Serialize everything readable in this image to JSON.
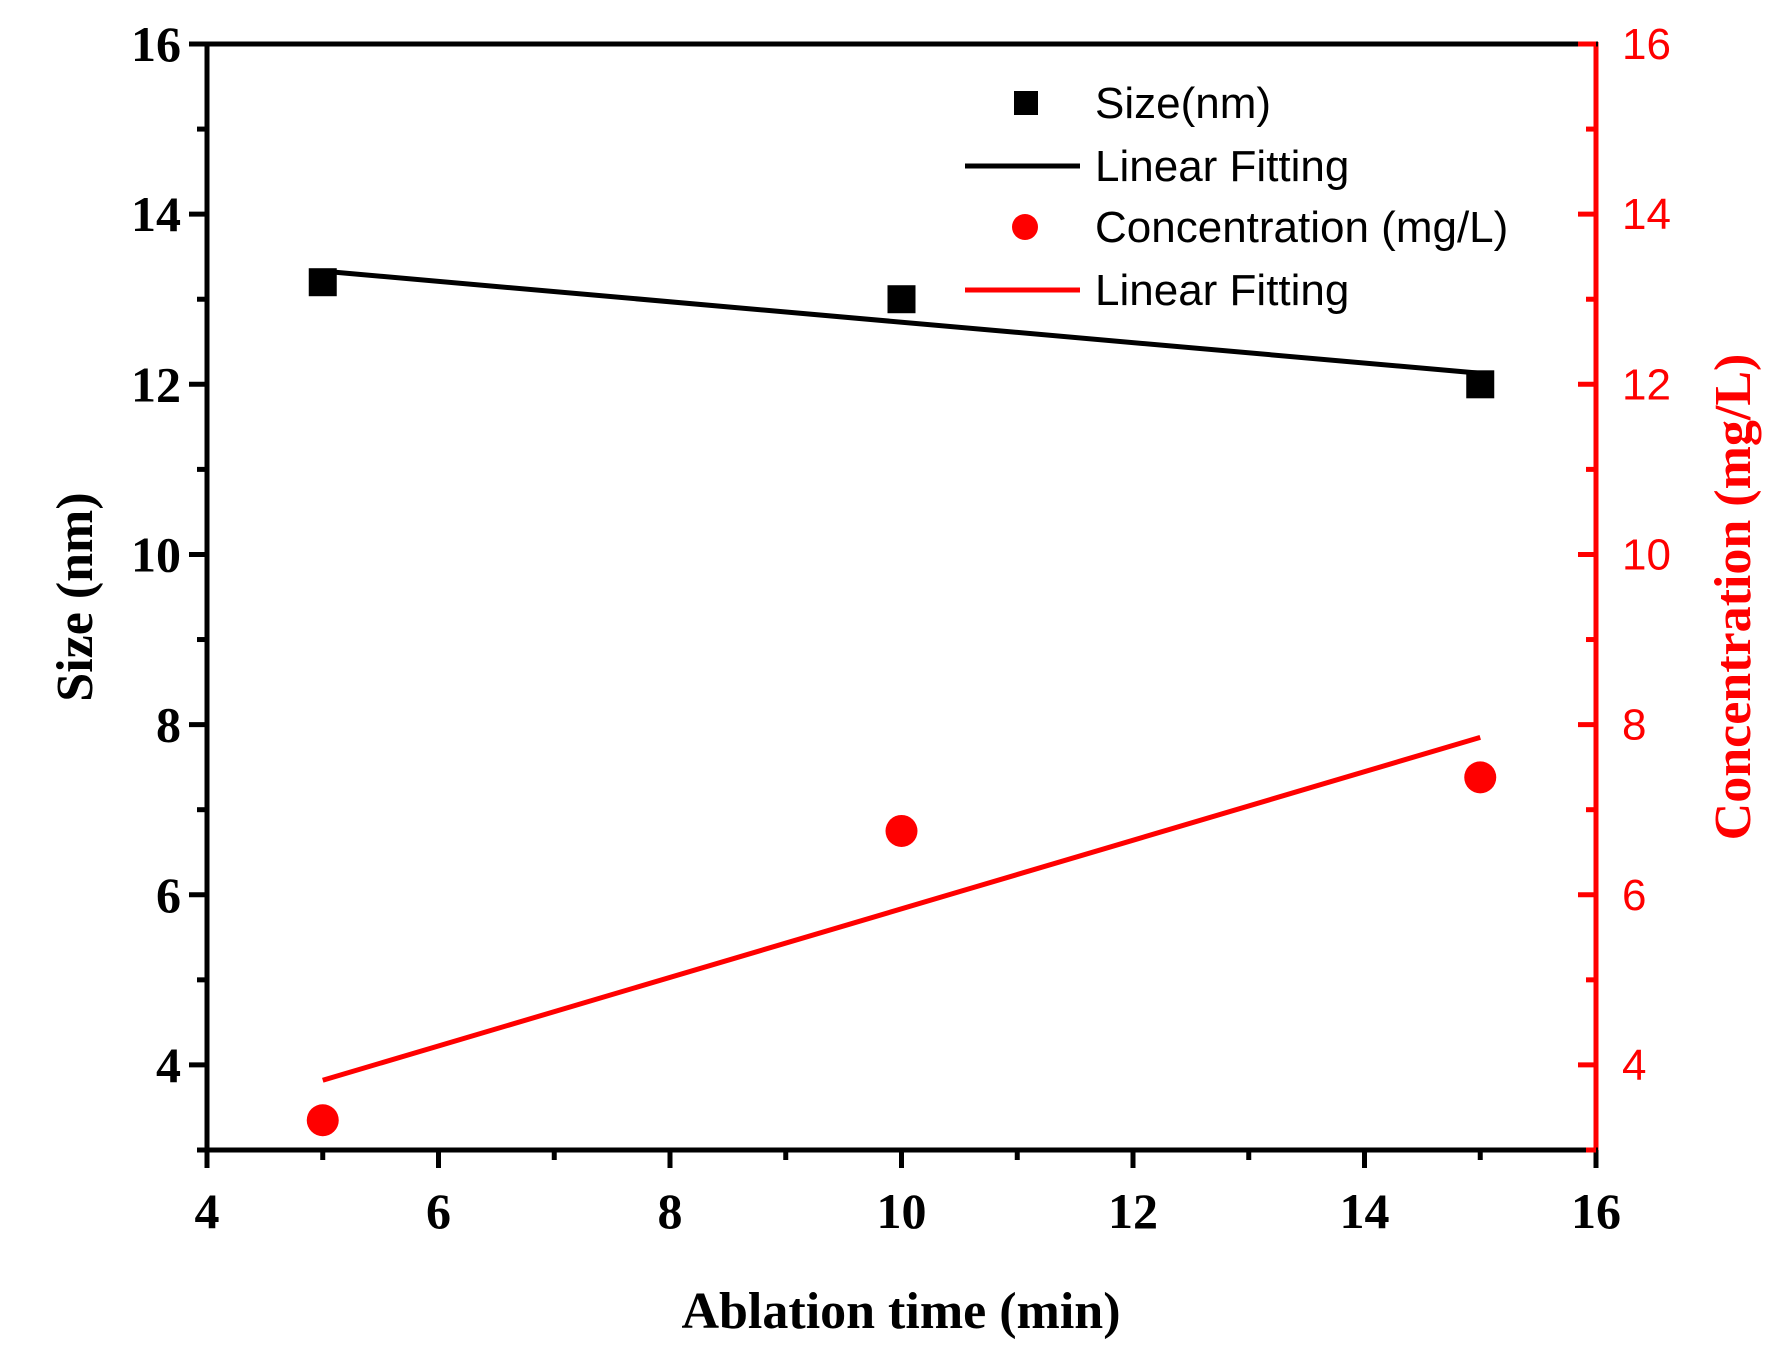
{
  "chart_data": {
    "type": "scatter",
    "x_axis": {
      "label": "Ablation time (min)",
      "range": [
        4,
        16
      ],
      "ticks": [
        "4",
        "6",
        "8",
        "10",
        "12",
        "14",
        "16"
      ]
    },
    "y_axis_left": {
      "label": "Size (nm)",
      "range": [
        3,
        16
      ],
      "ticks": [
        "4",
        "6",
        "8",
        "10",
        "12",
        "14",
        "16"
      ],
      "color": "#000000"
    },
    "y_axis_right": {
      "label": "Concentration (mg/L)",
      "range": [
        3,
        16
      ],
      "ticks": [
        "4",
        "6",
        "8",
        "10",
        "12",
        "14",
        "16"
      ],
      "color": "#ff0000"
    },
    "series": [
      {
        "name": "Size(nm)",
        "kind": "scatter",
        "marker": "square",
        "axis": "left",
        "color": "#000000",
        "x": [
          5,
          10,
          15
        ],
        "y": [
          13.2,
          13.0,
          12.0
        ]
      },
      {
        "name": "Linear Fitting",
        "kind": "line",
        "axis": "left",
        "color": "#000000",
        "x": [
          5,
          15
        ],
        "y": [
          13.33,
          12.13
        ]
      },
      {
        "name": "Concentration (mg/L)",
        "kind": "scatter",
        "marker": "circle",
        "axis": "right",
        "color": "#ff0000",
        "x": [
          5,
          10,
          15
        ],
        "y": [
          3.35,
          6.75,
          7.38
        ]
      },
      {
        "name": "Linear Fitting",
        "kind": "line",
        "axis": "right",
        "color": "#ff0000",
        "x": [
          5,
          15
        ],
        "y": [
          3.82,
          7.85
        ]
      }
    ],
    "legend": {
      "position": "top-right",
      "entries": [
        "Size(nm)",
        "Linear Fitting",
        "Concentration (mg/L)",
        "Linear Fitting"
      ]
    }
  }
}
